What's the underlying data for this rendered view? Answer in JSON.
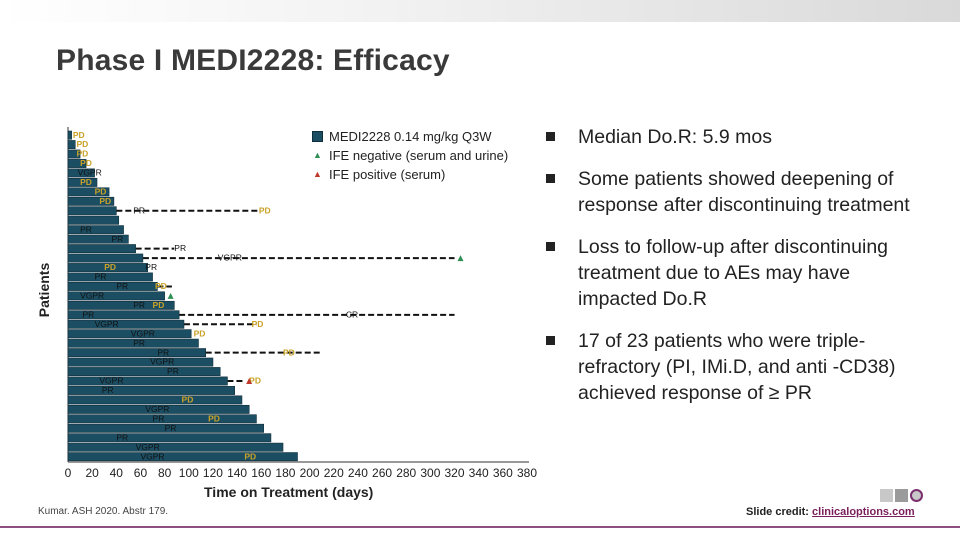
{
  "header": {
    "title": "Phase I MEDI2228: Efficacy"
  },
  "colors": {
    "bar": "#1c4e63",
    "bar_border": "#0f2e3b",
    "response_label": "#c9a227",
    "ife_negative": "#2f8f55",
    "ife_positive": "#c0392b",
    "brand": "#7a2f6e"
  },
  "legend": {
    "items": [
      {
        "label": "MEDI2228 0.14 mg/kg Q3W",
        "kind": "bar"
      },
      {
        "label": "IFE negative (serum and urine)",
        "kind": "triangle-green"
      },
      {
        "label": "IFE positive (serum)",
        "kind": "triangle-red"
      }
    ]
  },
  "bullets": [
    {
      "text": "Median Do.R: 5.9 mos"
    },
    {
      "text": "Some patients showed deepening of response after discontinuing treatment"
    },
    {
      "text": "Loss to follow-up after discontinuing treatment due to AEs may have impacted Do.R"
    },
    {
      "text": "17 of 23 patients who were triple-refractory (PI, IMi.D, and anti -CD38) achieved response of ≥ PR"
    }
  ],
  "axes": {
    "ylabel": "Patients",
    "xlabel": "Time on Treatment (days)"
  },
  "chart_data": {
    "type": "bar",
    "orientation": "horizontal swimmer",
    "xlabel": "Time on Treatment (days)",
    "ylabel": "Patients",
    "xlim": [
      0,
      380
    ],
    "xticks": [
      "0",
      "20",
      "40",
      "60",
      "80",
      "100",
      "120",
      "140",
      "160",
      "180",
      "200",
      "220",
      "240",
      "260",
      "280",
      "300",
      "320",
      "340",
      "360",
      "380"
    ],
    "bars": [
      {
        "duration": 3,
        "labels": [
          {
            "text": "PD",
            "x": 4
          }
        ]
      },
      {
        "duration": 6,
        "labels": [
          {
            "text": "PD",
            "x": 7
          }
        ]
      },
      {
        "duration": 10,
        "labels": [
          {
            "text": "PD",
            "x": 7
          }
        ]
      },
      {
        "duration": 15,
        "labels": [
          {
            "text": "PD",
            "x": 10
          }
        ]
      },
      {
        "duration": 22,
        "labels": [
          {
            "text": "VGPR",
            "x": 8
          }
        ]
      },
      {
        "duration": 24,
        "labels": [
          {
            "text": "PD",
            "x": 10
          }
        ]
      },
      {
        "duration": 34,
        "labels": [
          {
            "text": "PD",
            "x": 22
          }
        ]
      },
      {
        "duration": 38,
        "labels": [
          {
            "text": "PD",
            "x": 26
          }
        ]
      },
      {
        "duration": 40,
        "followup_end": 158,
        "labels": [
          {
            "text": "PR",
            "x": 54
          },
          {
            "text": "PD",
            "x": 158
          }
        ]
      },
      {
        "duration": 42,
        "labels": []
      },
      {
        "duration": 46,
        "labels": [
          {
            "text": "PR",
            "x": 10
          }
        ]
      },
      {
        "duration": 50,
        "labels": [
          {
            "text": "PR",
            "x": 36
          }
        ]
      },
      {
        "duration": 56,
        "followup_end": 88,
        "labels": [
          {
            "text": "PR",
            "x": 88
          }
        ]
      },
      {
        "duration": 62,
        "followup_end": 320,
        "ife": "negative",
        "labels": [
          {
            "text": "VGPR",
            "x": 124
          }
        ]
      },
      {
        "duration": 66,
        "labels": [
          {
            "text": "PD",
            "x": 30
          },
          {
            "text": "PR",
            "x": 64
          }
        ]
      },
      {
        "duration": 70,
        "labels": [
          {
            "text": "PR",
            "x": 22
          }
        ]
      },
      {
        "duration": 74,
        "followup_end": 86,
        "labels": [
          {
            "text": "PR",
            "x": 40
          },
          {
            "text": "PD",
            "x": 72
          }
        ]
      },
      {
        "duration": 80,
        "ife": "negative",
        "labels": [
          {
            "text": "VGPR",
            "x": 10
          }
        ]
      },
      {
        "duration": 88,
        "followup_end": 75,
        "labels": [
          {
            "text": "PR",
            "x": 54
          },
          {
            "text": "PD",
            "x": 70
          }
        ]
      },
      {
        "duration": 92,
        "followup_end": 320,
        "labels": [
          {
            "text": "PR",
            "x": 12
          },
          {
            "text": "CR",
            "x": 230
          }
        ]
      },
      {
        "duration": 96,
        "followup_end": 156,
        "labels": [
          {
            "text": "VGPR",
            "x": 22
          },
          {
            "text": "PD",
            "x": 152
          }
        ]
      },
      {
        "duration": 102,
        "labels": [
          {
            "text": "VGPR",
            "x": 52
          },
          {
            "text": "PD",
            "x": 104
          }
        ]
      },
      {
        "duration": 108,
        "labels": [
          {
            "text": "PR",
            "x": 54
          }
        ]
      },
      {
        "duration": 114,
        "followup_end": 210,
        "labels": [
          {
            "text": "PR",
            "x": 74
          },
          {
            "text": "PD",
            "x": 178
          }
        ]
      },
      {
        "duration": 120,
        "labels": [
          {
            "text": "VGPR",
            "x": 68
          }
        ]
      },
      {
        "duration": 126,
        "labels": [
          {
            "text": "PR",
            "x": 82
          }
        ]
      },
      {
        "duration": 132,
        "followup_end": 145,
        "ife": "positive",
        "labels": [
          {
            "text": "VGPR",
            "x": 26
          },
          {
            "text": "PD",
            "x": 150
          }
        ]
      },
      {
        "duration": 138,
        "labels": [
          {
            "text": "PR",
            "x": 28
          }
        ]
      },
      {
        "duration": 144,
        "labels": [
          {
            "text": "PD",
            "x": 94
          }
        ]
      },
      {
        "duration": 150,
        "labels": [
          {
            "text": "VGPR",
            "x": 64
          }
        ]
      },
      {
        "duration": 156,
        "labels": [
          {
            "text": "PR",
            "x": 70
          },
          {
            "text": "PD",
            "x": 116
          }
        ]
      },
      {
        "duration": 162,
        "labels": [
          {
            "text": "PR",
            "x": 80
          }
        ]
      },
      {
        "duration": 168,
        "labels": [
          {
            "text": "PR",
            "x": 40
          }
        ]
      },
      {
        "duration": 178,
        "labels": [
          {
            "text": "VGPR",
            "x": 56
          }
        ]
      },
      {
        "duration": 190,
        "labels": [
          {
            "text": "VGPR",
            "x": 60
          },
          {
            "text": "PD",
            "x": 146
          }
        ]
      }
    ]
  },
  "footer": {
    "citation": "Kumar. ASH 2020. Abstr 179.",
    "credit_prefix": "Slide credit: ",
    "credit_link": "clinicaloptions.com"
  }
}
